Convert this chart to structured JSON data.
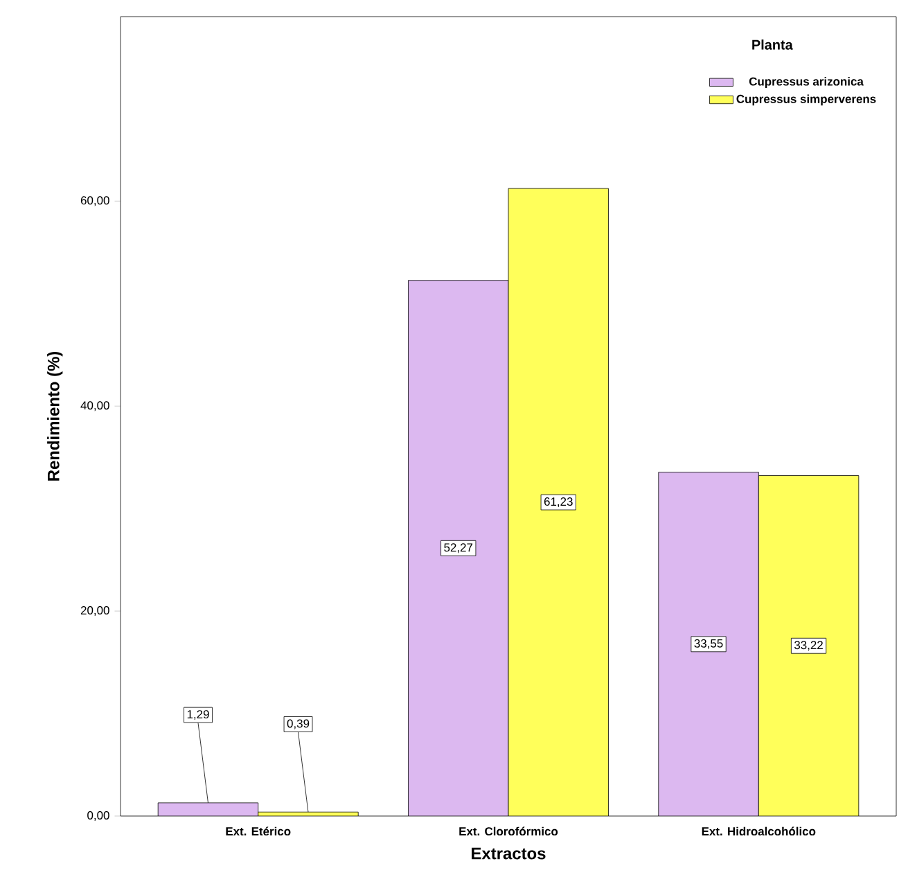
{
  "chart_data": {
    "type": "bar",
    "xlabel": "Extractos",
    "ylabel": "Rendimiento  (%)",
    "legend_title": "Planta",
    "legend": "top right",
    "categories": [
      "Ext. Etérico",
      "Ext. Clorofórmico",
      "Ext. Hidroalcohólico"
    ],
    "series": [
      {
        "name": "Cupressus arizonica",
        "color": "#dcb8f0",
        "values": [
          1.29,
          52.27,
          33.55
        ],
        "value_labels": [
          "1,29",
          "52,27",
          "33,55"
        ]
      },
      {
        "name": "Cupressus simperverens",
        "color": "#ffff5a",
        "values": [
          0.39,
          61.23,
          33.22
        ],
        "value_labels": [
          "0,39",
          "61,23",
          "33,22"
        ]
      }
    ],
    "ylim": [
      0,
      78
    ],
    "yticks": [
      {
        "value": 0,
        "label": "0,00"
      },
      {
        "value": 20,
        "label": "20,00"
      },
      {
        "value": 40,
        "label": "40,00"
      },
      {
        "value": 60,
        "label": "60,00"
      }
    ]
  }
}
